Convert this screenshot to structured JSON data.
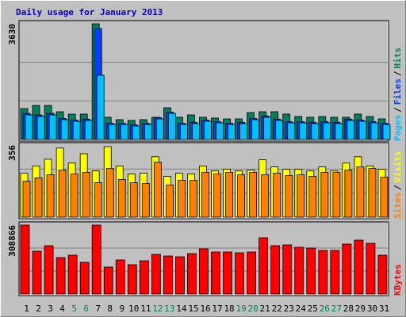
{
  "title": "Daily usage for January 2013",
  "categories": [
    "1",
    "2",
    "3",
    "4",
    "5",
    "6",
    "7",
    "8",
    "9",
    "10",
    "11",
    "12",
    "13",
    "14",
    "15",
    "16",
    "17",
    "18",
    "19",
    "20",
    "21",
    "22",
    "23",
    "24",
    "25",
    "26",
    "27",
    "28",
    "29",
    "30",
    "31"
  ],
  "highlight_categories": [
    "5",
    "6",
    "12",
    "13",
    "19",
    "20",
    "26",
    "27"
  ],
  "highlight_color": "#00805c",
  "separator": "/",
  "chart_data": [
    {
      "type": "bar",
      "ylim": [
        0,
        3630
      ],
      "yticks": [
        {
          "value": 1210,
          "label": null
        },
        {
          "value": 2420,
          "label": null
        },
        3630
      ],
      "series": [
        {
          "name": "Hits",
          "color": "#00805c",
          "values": [
            970,
            1069,
            1069,
            870,
            796,
            796,
            3630,
            696,
            622,
            597,
            622,
            696,
            994,
            696,
            771,
            696,
            671,
            646,
            646,
            845,
            870,
            870,
            796,
            721,
            696,
            721,
            696,
            696,
            796,
            721,
            646
          ]
        },
        {
          "name": "Files",
          "color": "#0040ff",
          "values": [
            820,
            770,
            820,
            660,
            610,
            640,
            3480,
            510,
            510,
            460,
            510,
            690,
            860,
            510,
            540,
            610,
            560,
            510,
            540,
            660,
            740,
            640,
            560,
            560,
            540,
            560,
            540,
            640,
            610,
            560,
            510
          ]
        },
        {
          "name": "Pages",
          "color": "#00c0ff",
          "values": [
            771,
            721,
            771,
            622,
            572,
            597,
            2014,
            472,
            472,
            423,
            472,
            646,
            820,
            472,
            497,
            572,
            522,
            472,
            497,
            622,
            696,
            597,
            522,
            522,
            497,
            522,
            497,
            597,
            572,
            522,
            472
          ]
        }
      ]
    },
    {
      "type": "bar",
      "ylim": [
        0,
        356
      ],
      "yticks": [
        {
          "value": 119,
          "label": null
        },
        {
          "value": 237,
          "label": null
        },
        356
      ],
      "series": [
        {
          "name": "Visits",
          "color": "#ffff00",
          "values": [
            217,
            252,
            286,
            341,
            267,
            313,
            228,
            348,
            252,
            213,
            217,
            298,
            201,
            217,
            213,
            252,
            228,
            236,
            228,
            232,
            283,
            248,
            236,
            236,
            228,
            248,
            228,
            267,
            298,
            252,
            236
          ]
        },
        {
          "name": "Sites",
          "color": "#ff8000",
          "values": [
            178,
            194,
            209,
            232,
            213,
            221,
            170,
            240,
            186,
            170,
            166,
            271,
            159,
            182,
            182,
            221,
            213,
            221,
            209,
            221,
            209,
            217,
            205,
            209,
            201,
            221,
            221,
            232,
            248,
            240,
            197
          ]
        }
      ]
    },
    {
      "type": "bar",
      "ylim": [
        0,
        308866
      ],
      "yticks": [
        {
          "value": 102955,
          "label": null
        },
        {
          "value": 205911,
          "label": null
        },
        308866
      ],
      "series": [
        {
          "name": "KBytes",
          "color": "#ff0000",
          "values": [
            308866,
            191700,
            216550,
            163300,
            173950,
            142000,
            308866,
            120700,
            152650,
            131350,
            149100,
            177500,
            170400,
            166850,
            181050,
            202350,
            188150,
            188150,
            184600,
            188150,
            252050,
            216550,
            220100,
            209450,
            205900,
            195250,
            195250,
            223650,
            241400,
            227200,
            173950
          ]
        }
      ]
    }
  ]
}
